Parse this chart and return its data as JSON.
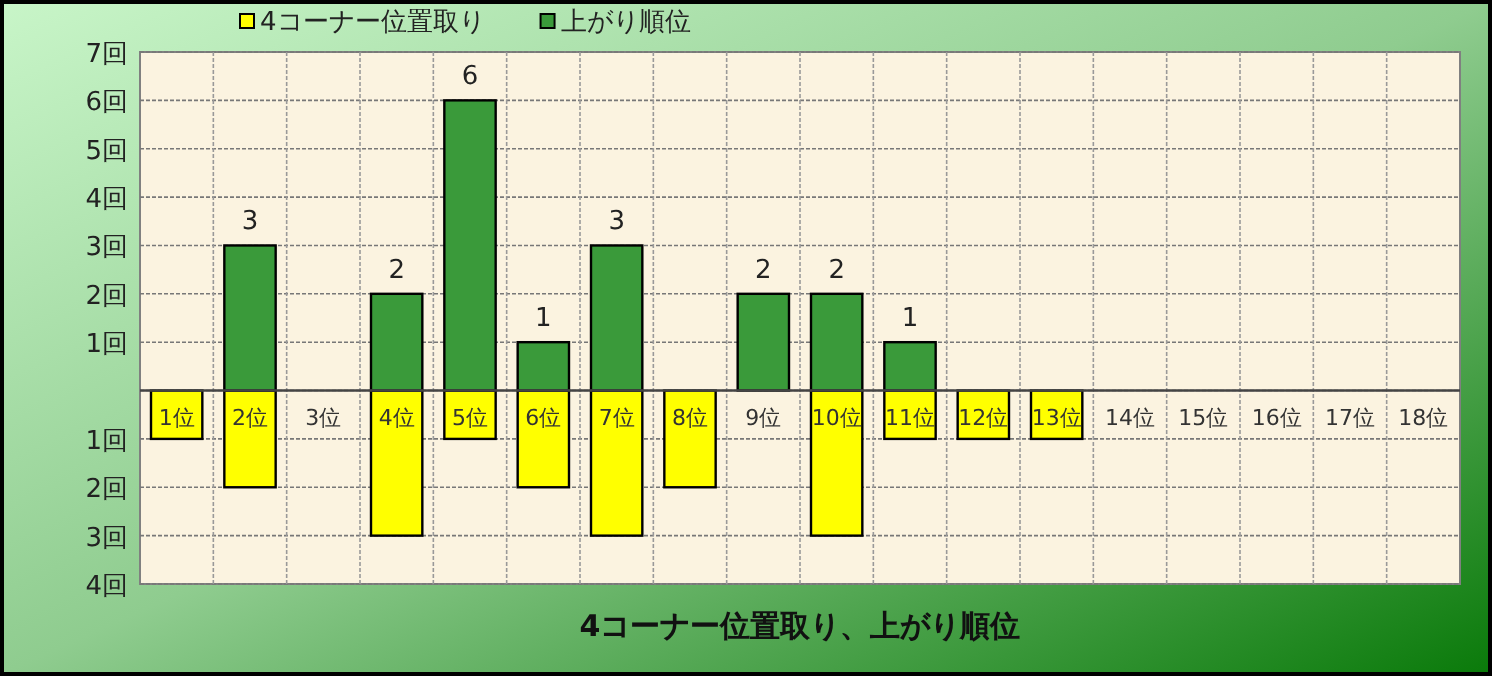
{
  "chart_data": {
    "type": "bar",
    "title": "4コーナー位置取り、上がり順位",
    "stacked": true,
    "categories": [
      "1位",
      "2位",
      "3位",
      "4位",
      "5位",
      "6位",
      "7位",
      "8位",
      "9位",
      "10位",
      "11位",
      "12位",
      "13位",
      "14位",
      "15位",
      "16位",
      "17位",
      "18位"
    ],
    "series": [
      {
        "name": "4コーナー位置取り",
        "color": "#ffff00",
        "values": [
          -1,
          -2,
          0,
          -3,
          -1,
          -2,
          -3,
          -2,
          0,
          -3,
          -1,
          -1,
          -1,
          0,
          0,
          0,
          0,
          0
        ]
      },
      {
        "name": "上がり順位",
        "color": "#3a9a3a",
        "values": [
          0,
          3,
          0,
          2,
          6,
          1,
          3,
          0,
          2,
          2,
          1,
          0,
          0,
          0,
          0,
          0,
          0,
          0
        ],
        "value_labels": [
          null,
          "3",
          null,
          "2",
          "6",
          "1",
          "3",
          null,
          "2",
          "2",
          "1",
          null,
          null,
          null,
          null,
          null,
          null,
          null
        ]
      }
    ],
    "ylim": [
      -4,
      7
    ],
    "yticks": [
      {
        "value": 7,
        "label": "7回"
      },
      {
        "value": 6,
        "label": "6回"
      },
      {
        "value": 5,
        "label": "5回"
      },
      {
        "value": 4,
        "label": "4回"
      },
      {
        "value": 3,
        "label": "3回"
      },
      {
        "value": 2,
        "label": "2回"
      },
      {
        "value": 1,
        "label": "1回"
      },
      {
        "value": 0,
        "label": null
      },
      {
        "value": -1,
        "label": "1回"
      },
      {
        "value": -2,
        "label": "2回"
      },
      {
        "value": -3,
        "label": "3回"
      },
      {
        "value": -4,
        "label": "4回"
      }
    ],
    "grid": true,
    "legend": "top left"
  }
}
